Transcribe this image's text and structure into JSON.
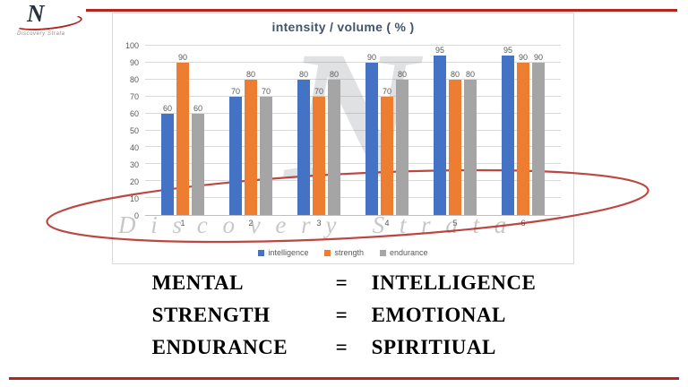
{
  "slide": {
    "rule_color": "#b3261e"
  },
  "logo": {
    "letter": "N",
    "subtext": "Discovery Strata"
  },
  "watermark": {
    "letter": "N",
    "text": "Discovery Strata"
  },
  "chart_data": {
    "type": "bar",
    "title": "intensity / volume ( % )",
    "categories": [
      "1",
      "2",
      "3",
      "4",
      "5",
      "6"
    ],
    "series": [
      {
        "name": "intelligence",
        "color": "#4472c4",
        "values": [
          60,
          70,
          80,
          90,
          95,
          95
        ]
      },
      {
        "name": "strength",
        "color": "#ed7d31",
        "values": [
          90,
          80,
          70,
          70,
          80,
          90
        ]
      },
      {
        "name": "endurance",
        "color": "#a5a5a5",
        "values": [
          60,
          70,
          80,
          80,
          80,
          90
        ]
      }
    ],
    "ylim": [
      0,
      100
    ],
    "ytick_step": 10,
    "grid": true,
    "legend_position": "bottom"
  },
  "equations": [
    {
      "left": "MENTAL",
      "eq": "=",
      "right": "INTELLIGENCE"
    },
    {
      "left": "STRENGTH",
      "eq": "=",
      "right": "EMOTIONAL"
    },
    {
      "left": "ENDURANCE",
      "eq": "=",
      "right": "SPIRITIUAL"
    }
  ]
}
